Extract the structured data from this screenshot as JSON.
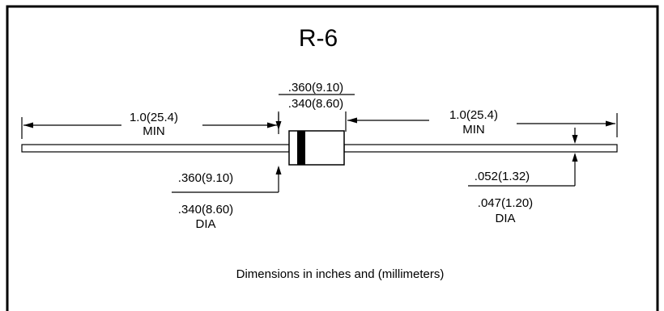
{
  "title": "R-6",
  "body_dim": {
    "max": ".360(9.10)",
    "min": ".340(8.60)"
  },
  "lead_length_left": {
    "value": "1.0(25.4)",
    "qualifier": "MIN"
  },
  "lead_length_right": {
    "value": "1.0(25.4)",
    "qualifier": "MIN"
  },
  "body_dia": {
    "max": ".360(9.10)",
    "min": ".340(8.60)",
    "qualifier": "DIA"
  },
  "lead_dia": {
    "max": ".052(1.32)",
    "min": ".047(1.20)",
    "qualifier": "DIA"
  },
  "footnote": "Dimensions in inches and (millimeters)"
}
